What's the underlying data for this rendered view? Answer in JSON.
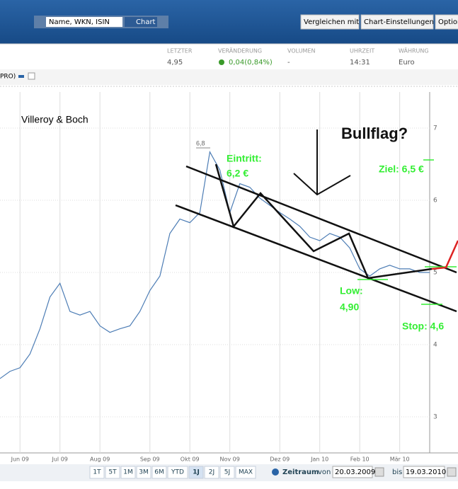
{
  "header": {
    "search_placeholder": "Name, WKN, ISIN",
    "chart_button": "Chart",
    "buttons": [
      "Vergleichen mit",
      "Chart-Einstellungen",
      "Option"
    ]
  },
  "quote": {
    "headers": [
      "LETZTER",
      "VERÄNDERUNG",
      "VOLUMEN",
      "UHRZEIT",
      "WÄHRUNG"
    ],
    "values": [
      "4,95",
      "0,04(0,84%)",
      "-",
      "14:31",
      "Euro"
    ]
  },
  "tab": "PRO)",
  "chart_data": {
    "type": "line",
    "title": "Villeroy & Boch",
    "categories": [
      null,
      null,
      "Jun 09",
      null,
      null,
      null,
      "Jul 09",
      null,
      null,
      null,
      "Aug 09",
      null,
      null,
      null,
      null,
      "Sep 09",
      null,
      null,
      null,
      "Okt 09",
      null,
      null,
      null,
      "Nov 09",
      null,
      null,
      null,
      null,
      "Dez 09",
      null,
      null,
      null,
      "Jan 10",
      null,
      null,
      null,
      "Feb 10",
      null,
      null,
      null,
      "Mär 10",
      null,
      null,
      null
    ],
    "values": [
      3.53,
      3.63,
      3.68,
      3.87,
      4.22,
      4.66,
      4.85,
      4.46,
      4.41,
      4.46,
      4.26,
      4.17,
      4.22,
      4.26,
      4.46,
      4.75,
      4.95,
      5.54,
      5.74,
      5.69,
      5.83,
      6.67,
      6.42,
      5.83,
      6.23,
      6.18,
      6.03,
      5.93,
      5.83,
      5.74,
      5.64,
      5.49,
      5.44,
      5.54,
      5.49,
      5.34,
      5.05,
      4.95,
      5.05,
      5.1,
      5.05,
      5.05,
      5.0,
      5.0
    ],
    "color": "#4d7db5",
    "ylim": [
      2.5,
      7.5
    ],
    "yticks": [
      3,
      4,
      5,
      6,
      7
    ],
    "grid": true,
    "annotations": [
      "Bullflag?",
      "Eintritt:",
      "6,2 €",
      "Ziel: 6,5 €",
      "Low:",
      "4,90",
      "Stop: 4,6",
      "6,8"
    ]
  },
  "footer": {
    "ranges": [
      "1T",
      "5T",
      "1M",
      "3M",
      "6M",
      "YTD",
      "1J",
      "2J",
      "5J",
      "MAX"
    ],
    "zeitraum": "Zeitraum",
    "von": "von",
    "from": "20.03.2009",
    "bis": "bis",
    "to": "19.03.2010"
  }
}
